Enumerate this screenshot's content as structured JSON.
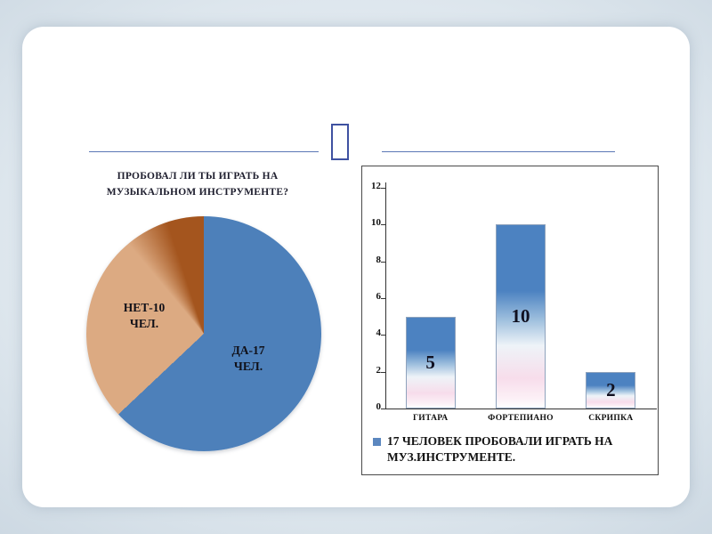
{
  "slide": {
    "type": "presentation-slide",
    "background_outer": "#b8c8d6",
    "background_panel": "#ffffff",
    "divider_line_color": "#5b77b5",
    "divider_ornament_color": "#3f51a1"
  },
  "chart_data": [
    {
      "type": "pie",
      "title": "ПРОБОВАЛ ЛИ ТЫ ИГРАТЬ НА МУЗЫКАЛЬНОМ ИНСТРУМЕНТЕ?",
      "slices": [
        {
          "label": "ДА-17 ЧЕЛ.",
          "value": 17,
          "color": "#4d80ba"
        },
        {
          "label": "НЕТ-10 ЧЕЛ.",
          "value": 10,
          "color": "#dcaa82"
        }
      ],
      "no_slice_dark_shade": "#a4551e",
      "total": 27,
      "start_angle_deg": 0,
      "direction": "clockwise",
      "legend_position": "none"
    },
    {
      "type": "bar",
      "categories": [
        "ГИТАРА",
        "ФОРТЕПИАНО",
        "СКРИПКА"
      ],
      "values": [
        5,
        10,
        2
      ],
      "ylim": [
        0,
        12
      ],
      "yticks": [
        0,
        2,
        4,
        6,
        8,
        10,
        12
      ],
      "bar_color_top": "#4c82c1",
      "bar_color_bottom": "#f6dcea",
      "grid": false,
      "legend": "17 ЧЕЛОВЕК ПРОБОВАЛИ ИГРАТЬ НА МУЗ.ИНСТРУМЕНТЕ.",
      "legend_marker_color": "#5b87bf",
      "legend_position": "bottom"
    }
  ]
}
